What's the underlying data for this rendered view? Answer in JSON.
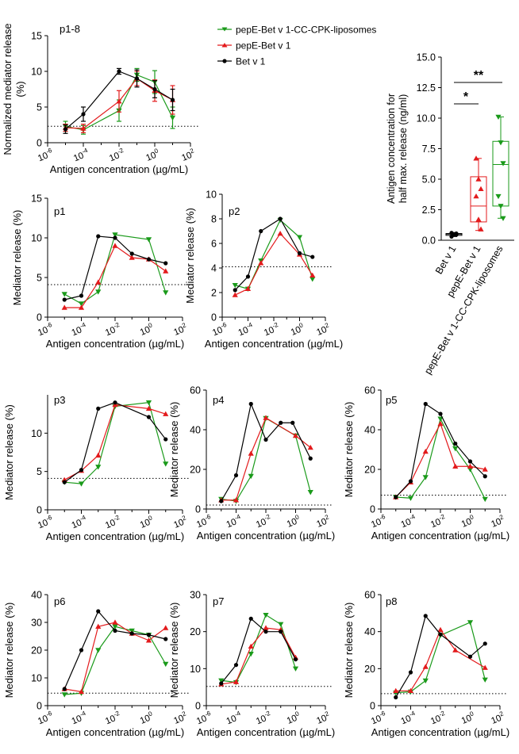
{
  "series_styles": [
    {
      "key": "green",
      "color": "#1a9a1a",
      "marker": "triangle-down"
    },
    {
      "key": "red",
      "color": "#e31a1c",
      "marker": "triangle-up"
    },
    {
      "key": "black",
      "color": "#000000",
      "marker": "circle"
    }
  ],
  "legend": {
    "entries": [
      {
        "label": "pepE-Bet v 1-CC-CPK-liposomes",
        "style": "green"
      },
      {
        "label": "pepE-Bet v 1",
        "style": "red"
      },
      {
        "label": "Bet v 1",
        "style": "black"
      }
    ]
  },
  "chart_data": [
    {
      "id": "p1-8",
      "type": "line",
      "title": "p1-8",
      "xlabel": "Antigen concentration (µg/mL)",
      "ylabel": "Normalized mediator release",
      "ylabel2": "(%)",
      "xscale": "log10",
      "xlim": [
        -6,
        2
      ],
      "ylim": [
        0,
        15
      ],
      "yticks": [
        0,
        5,
        10,
        15
      ],
      "xtick_labels": [
        "10",
        "10",
        "10",
        "10",
        "10"
      ],
      "xtick_exps": [
        "-6",
        "-4",
        "-2",
        "0",
        "2"
      ],
      "threshold": 2.3,
      "x_log": [
        -5,
        -4,
        -2,
        -1,
        0,
        1
      ],
      "series": [
        {
          "name": "pepE-Bet v 1-CC-CPK-liposomes",
          "style": "green",
          "values": [
            2.3,
            1.8,
            4.5,
            9.5,
            8.5,
            3.5
          ],
          "errors": [
            0.7,
            0.6,
            1.5,
            0.9,
            1.6,
            1.5
          ]
        },
        {
          "name": "pepE-Bet v 1",
          "style": "red",
          "values": [
            2.1,
            2.0,
            5.8,
            9.0,
            7.3,
            6.0
          ],
          "errors": [
            0.5,
            0.6,
            1.5,
            1.0,
            1.5,
            2.0
          ]
        },
        {
          "name": "Bet v 1",
          "style": "black",
          "values": [
            1.9,
            4.0,
            10.0,
            9.0,
            7.5,
            6.0
          ],
          "errors": [
            0.6,
            1.0,
            0.4,
            1.2,
            1.2,
            1.5
          ]
        }
      ]
    },
    {
      "id": "summary",
      "type": "box",
      "ylabel": "Antigen concentration for",
      "ylabel2": "half max. release (ng/ml)",
      "ylim": [
        0,
        15
      ],
      "yticks": [
        "0.0",
        "2.5",
        "5.0",
        "7.5",
        "10.0",
        "12.5",
        "15.0"
      ],
      "ytick_values": [
        0,
        2.5,
        5,
        7.5,
        10,
        12.5,
        15
      ],
      "categories": [
        "Bet v 1",
        "pepE-Bet v 1",
        "pepE-Bet v 1-CC-CPK-liposomes"
      ],
      "styles": [
        "black",
        "red",
        "green"
      ],
      "boxes": [
        {
          "min": 0.3,
          "q1": 0.4,
          "median": 0.5,
          "q3": 0.55,
          "max": 0.6,
          "points": [
            0.3,
            0.5,
            0.55,
            0.6,
            0.5,
            0.45
          ]
        },
        {
          "min": 0.8,
          "q1": 1.5,
          "median": 2.8,
          "q3": 5.2,
          "max": 6.7,
          "points": [
            6.7,
            5.0,
            4.2,
            3.6,
            1.7,
            0.9
          ]
        },
        {
          "min": 1.8,
          "q1": 2.8,
          "median": 6.2,
          "q3": 8.1,
          "max": 10.1,
          "points": [
            10.1,
            8.0,
            6.3,
            3.6,
            2.8,
            1.8
          ]
        }
      ],
      "significance": [
        {
          "label": "*",
          "from": 0,
          "to": 1
        },
        {
          "label": "**",
          "from": 0,
          "to": 2
        }
      ]
    },
    {
      "id": "p1",
      "type": "line",
      "title": "p1",
      "xlabel": "Antigen concentration (µg/mL)",
      "ylabel": "Mediator release (%)",
      "xscale": "log10",
      "xlim": [
        -6,
        2
      ],
      "ylim": [
        0,
        15
      ],
      "yticks": [
        0,
        5,
        10,
        15
      ],
      "xtick_labels": [
        "10",
        "10",
        "10",
        "10",
        "10"
      ],
      "xtick_exps": [
        "-6",
        "-4",
        "-2",
        "0",
        "2"
      ],
      "threshold": 4.1,
      "x_log": [
        -5,
        -4,
        -3,
        -2,
        -1,
        0,
        1
      ],
      "series": [
        {
          "name": "pepE-Bet v 1-CC-CPK-liposomes",
          "style": "green",
          "x_log": [
            -5,
            -4,
            -3,
            -2,
            0,
            1
          ],
          "values": [
            2.9,
            1.7,
            3.2,
            10.4,
            9.8,
            3.1
          ]
        },
        {
          "name": "pepE-Bet v 1",
          "style": "red",
          "x_log": [
            -5,
            -4,
            -3,
            -2,
            -1,
            0,
            1
          ],
          "values": [
            1.2,
            1.2,
            4.4,
            9.0,
            7.5,
            7.3,
            5.8
          ]
        },
        {
          "name": "Bet v 1",
          "style": "black",
          "x_log": [
            -5,
            -4,
            -3,
            -2,
            -1,
            0,
            1
          ],
          "values": [
            2.2,
            2.7,
            10.2,
            10.0,
            8.0,
            7.3,
            6.8
          ]
        }
      ]
    },
    {
      "id": "p2",
      "type": "line",
      "title": "p2",
      "xlabel": "Antigen concentration (µg/mL)",
      "ylabel": "Mediator release (%)",
      "xscale": "log10",
      "xlim": [
        -6,
        2
      ],
      "ylim": [
        0,
        10
      ],
      "yticks": [
        0,
        2,
        4,
        6,
        8,
        10
      ],
      "xtick_labels": [
        "10",
        "10",
        "10",
        "10",
        "10"
      ],
      "xtick_exps": [
        "-6",
        "-4",
        "-2",
        "0",
        "2"
      ],
      "threshold": 4.1,
      "series": [
        {
          "name": "pepE-Bet v 1-CC-CPK-liposomes",
          "style": "green",
          "x_log": [
            -5,
            -4,
            -3,
            -1.5,
            0,
            1
          ],
          "values": [
            2.6,
            2.3,
            4.6,
            7.9,
            6.5,
            3.1
          ]
        },
        {
          "name": "pepE-Bet v 1",
          "style": "red",
          "x_log": [
            -5,
            -4,
            -3,
            -1.5,
            0,
            1
          ],
          "values": [
            1.8,
            2.3,
            4.4,
            6.8,
            5.1,
            3.4
          ]
        },
        {
          "name": "Bet v 1",
          "style": "black",
          "x_log": [
            -5,
            -4,
            -3,
            -1.5,
            0,
            1
          ],
          "values": [
            2.2,
            3.3,
            7.0,
            8.0,
            5.2,
            4.9
          ]
        }
      ]
    },
    {
      "id": "p3",
      "type": "line",
      "title": "p3",
      "xlabel": "Antigen concentration (µg/mL)",
      "ylabel": "Mediator release (%)",
      "xscale": "log10",
      "xlim": [
        -6,
        2
      ],
      "ylim": [
        0,
        15
      ],
      "yticks": [
        0,
        5,
        10
      ],
      "xtick_labels": [
        "10",
        "10",
        "10",
        "10",
        "10"
      ],
      "xtick_exps": [
        "-6",
        "-4",
        "-2",
        "0",
        "2"
      ],
      "threshold": 4.1,
      "series": [
        {
          "name": "pepE-Bet v 1-CC-CPK-liposomes",
          "style": "green",
          "x_log": [
            -5,
            -4,
            -3,
            -2,
            0,
            1
          ],
          "values": [
            3.6,
            3.4,
            5.6,
            13.5,
            14.0,
            6.0
          ]
        },
        {
          "name": "pepE-Bet v 1",
          "style": "red",
          "x_log": [
            -5,
            -4,
            -3,
            -2,
            0,
            1
          ],
          "values": [
            3.9,
            5.1,
            7.1,
            13.7,
            13.2,
            12.5
          ]
        },
        {
          "name": "Bet v 1",
          "style": "black",
          "x_log": [
            -5,
            -4,
            -3,
            -2,
            0,
            1
          ],
          "values": [
            3.6,
            5.2,
            13.2,
            14.0,
            12.1,
            9.2
          ]
        }
      ]
    },
    {
      "id": "p4",
      "type": "line",
      "title": "p4",
      "xlabel": "Antigen concentration (µg/mL)",
      "ylabel": "Mediator release (%)",
      "xscale": "log10",
      "xlim": [
        -6,
        2
      ],
      "ylim": [
        0,
        60
      ],
      "yticks": [
        0,
        20,
        40,
        60
      ],
      "xtick_labels": [
        "10",
        "10",
        "10",
        "10",
        "10"
      ],
      "xtick_exps": [
        "-6",
        "-4",
        "-2",
        "0",
        "2"
      ],
      "threshold": 2,
      "series": [
        {
          "name": "pepE-Bet v 1-CC-CPK-liposomes",
          "style": "green",
          "x_log": [
            -5,
            -4,
            -3,
            -2,
            0,
            1
          ],
          "values": [
            5.0,
            4.0,
            16.6,
            45.8,
            37.0,
            8.5
          ]
        },
        {
          "name": "pepE-Bet v 1",
          "style": "red",
          "x_log": [
            -5,
            -4,
            -3,
            -2,
            0,
            1
          ],
          "values": [
            4.5,
            4.5,
            28.0,
            46.0,
            37.0,
            31.0
          ]
        },
        {
          "name": "Bet v 1",
          "style": "black",
          "x_log": [
            -5,
            -4,
            -3,
            -2,
            -1,
            -0.2,
            1
          ],
          "values": [
            4.0,
            17.0,
            53.0,
            35.0,
            43.5,
            43.5,
            25.5
          ]
        }
      ]
    },
    {
      "id": "p5",
      "type": "line",
      "title": "p5",
      "xlabel": "Antigen concentration (µg/mL)",
      "ylabel": "Mediator release (%)",
      "xscale": "log10",
      "xlim": [
        -6,
        2
      ],
      "ylim": [
        0,
        60
      ],
      "yticks": [
        0,
        20,
        40,
        60
      ],
      "xtick_labels": [
        "10",
        "10",
        "10",
        "10",
        "10"
      ],
      "xtick_exps": [
        "-6",
        "-4",
        "-2",
        "0",
        "2"
      ],
      "threshold": 7,
      "series": [
        {
          "name": "pepE-Bet v 1-CC-CPK-liposomes",
          "style": "green",
          "x_log": [
            -5,
            -4,
            -3,
            -2,
            -1,
            0,
            1
          ],
          "values": [
            6.0,
            5.5,
            16.0,
            45.5,
            30.5,
            20.0,
            5.0
          ]
        },
        {
          "name": "pepE-Bet v 1",
          "style": "red",
          "x_log": [
            -5,
            -4,
            -3,
            -2,
            -1,
            0,
            1
          ],
          "values": [
            6.0,
            13.5,
            29.0,
            43.0,
            21.5,
            21.5,
            20.0
          ]
        },
        {
          "name": "Bet v 1",
          "style": "black",
          "x_log": [
            -5,
            -4,
            -3,
            -2,
            -1,
            0,
            1
          ],
          "values": [
            6.0,
            14.0,
            53.0,
            48.0,
            33.0,
            24.0,
            16.5
          ]
        }
      ]
    },
    {
      "id": "p6",
      "type": "line",
      "title": "p6",
      "xlabel": "Antigen concentration (µg/mL)",
      "ylabel": "Mediator release (%)",
      "xscale": "log10",
      "xlim": [
        -6,
        2
      ],
      "ylim": [
        0,
        40
      ],
      "yticks": [
        0,
        10,
        20,
        30,
        40
      ],
      "xtick_labels": [
        "10",
        "10",
        "10",
        "10",
        "10"
      ],
      "xtick_exps": [
        "-6",
        "-4",
        "-2",
        "0",
        "2"
      ],
      "threshold": 4.5,
      "series": [
        {
          "name": "pepE-Bet v 1-CC-CPK-liposomes",
          "style": "green",
          "x_log": [
            -5,
            -4,
            -3,
            -2,
            -1,
            0,
            1
          ],
          "values": [
            4.0,
            4.5,
            20.0,
            28.5,
            27.0,
            25.5,
            15.0
          ]
        },
        {
          "name": "pepE-Bet v 1",
          "style": "red",
          "x_log": [
            -5,
            -4,
            -3,
            -2,
            -1,
            0,
            1
          ],
          "values": [
            6.0,
            5.0,
            28.5,
            30.0,
            26.0,
            23.5,
            28.0
          ]
        },
        {
          "name": "Bet v 1",
          "style": "black",
          "x_log": [
            -5,
            -4,
            -3,
            -2,
            -1,
            0,
            1
          ],
          "values": [
            6.0,
            20.0,
            34.0,
            27.0,
            26.0,
            25.5,
            24.0
          ]
        }
      ]
    },
    {
      "id": "p7",
      "type": "line",
      "title": "p7",
      "xlabel": "Antigen concentration (µg/mL)",
      "ylabel": "Mediator release (%)",
      "xscale": "log10",
      "xlim": [
        -6,
        2
      ],
      "ylim": [
        0,
        30
      ],
      "yticks": [
        0,
        10,
        20,
        30
      ],
      "xtick_labels": [
        "10",
        "10",
        "10",
        "10",
        "10"
      ],
      "xtick_exps": [
        "-6",
        "-4",
        "-2",
        "0",
        "2"
      ],
      "threshold": 5.2,
      "series": [
        {
          "name": "pepE-Bet v 1-CC-CPK-liposomes",
          "style": "green",
          "x_log": [
            -5,
            -4,
            -3,
            -2,
            -1,
            0,
            1
          ],
          "values": [
            6.8,
            6.3,
            14.0,
            24.5,
            22.0,
            10.0
          ]
        },
        {
          "name": "pepE-Bet v 1",
          "style": "red",
          "x_log": [
            -5,
            -4,
            -3,
            -2,
            -1,
            0,
            1
          ],
          "values": [
            5.8,
            6.4,
            16.0,
            21.0,
            20.5,
            13.0
          ]
        },
        {
          "name": "Bet v 1",
          "style": "black",
          "x_log": [
            -5,
            -4,
            -3,
            -2,
            -1,
            0,
            1
          ],
          "values": [
            6.0,
            11.0,
            23.5,
            20.0,
            20.0,
            12.5
          ]
        }
      ]
    },
    {
      "id": "p8",
      "type": "line",
      "title": "p8",
      "xlabel": "Antigen concentration (µg/mL)",
      "ylabel": "Mediator release (%)",
      "xscale": "log10",
      "xlim": [
        -6,
        2
      ],
      "ylim": [
        0,
        60
      ],
      "yticks": [
        0,
        20,
        40,
        60
      ],
      "xtick_labels": [
        "10",
        "10",
        "10",
        "10",
        "10"
      ],
      "xtick_exps": [
        "-6",
        "-4",
        "-2",
        "0",
        "2"
      ],
      "threshold": 6.5,
      "series": [
        {
          "name": "pepE-Bet v 1-CC-CPK-liposomes",
          "style": "green",
          "x_log": [
            -5,
            -4,
            -3,
            -2,
            0,
            1
          ],
          "values": [
            7.0,
            7.5,
            13.5,
            38.0,
            45.0,
            14.0
          ]
        },
        {
          "name": "pepE-Bet v 1",
          "style": "red",
          "x_log": [
            -5,
            -4,
            -3,
            -2,
            -1,
            1
          ],
          "values": [
            8.0,
            8.0,
            21.0,
            41.0,
            30.0,
            20.5
          ]
        },
        {
          "name": "Bet v 1",
          "style": "black",
          "x_log": [
            -5,
            -4,
            -3,
            -2,
            0,
            1
          ],
          "values": [
            4.5,
            18.0,
            48.5,
            38.5,
            26.5,
            33.5
          ]
        }
      ]
    }
  ]
}
